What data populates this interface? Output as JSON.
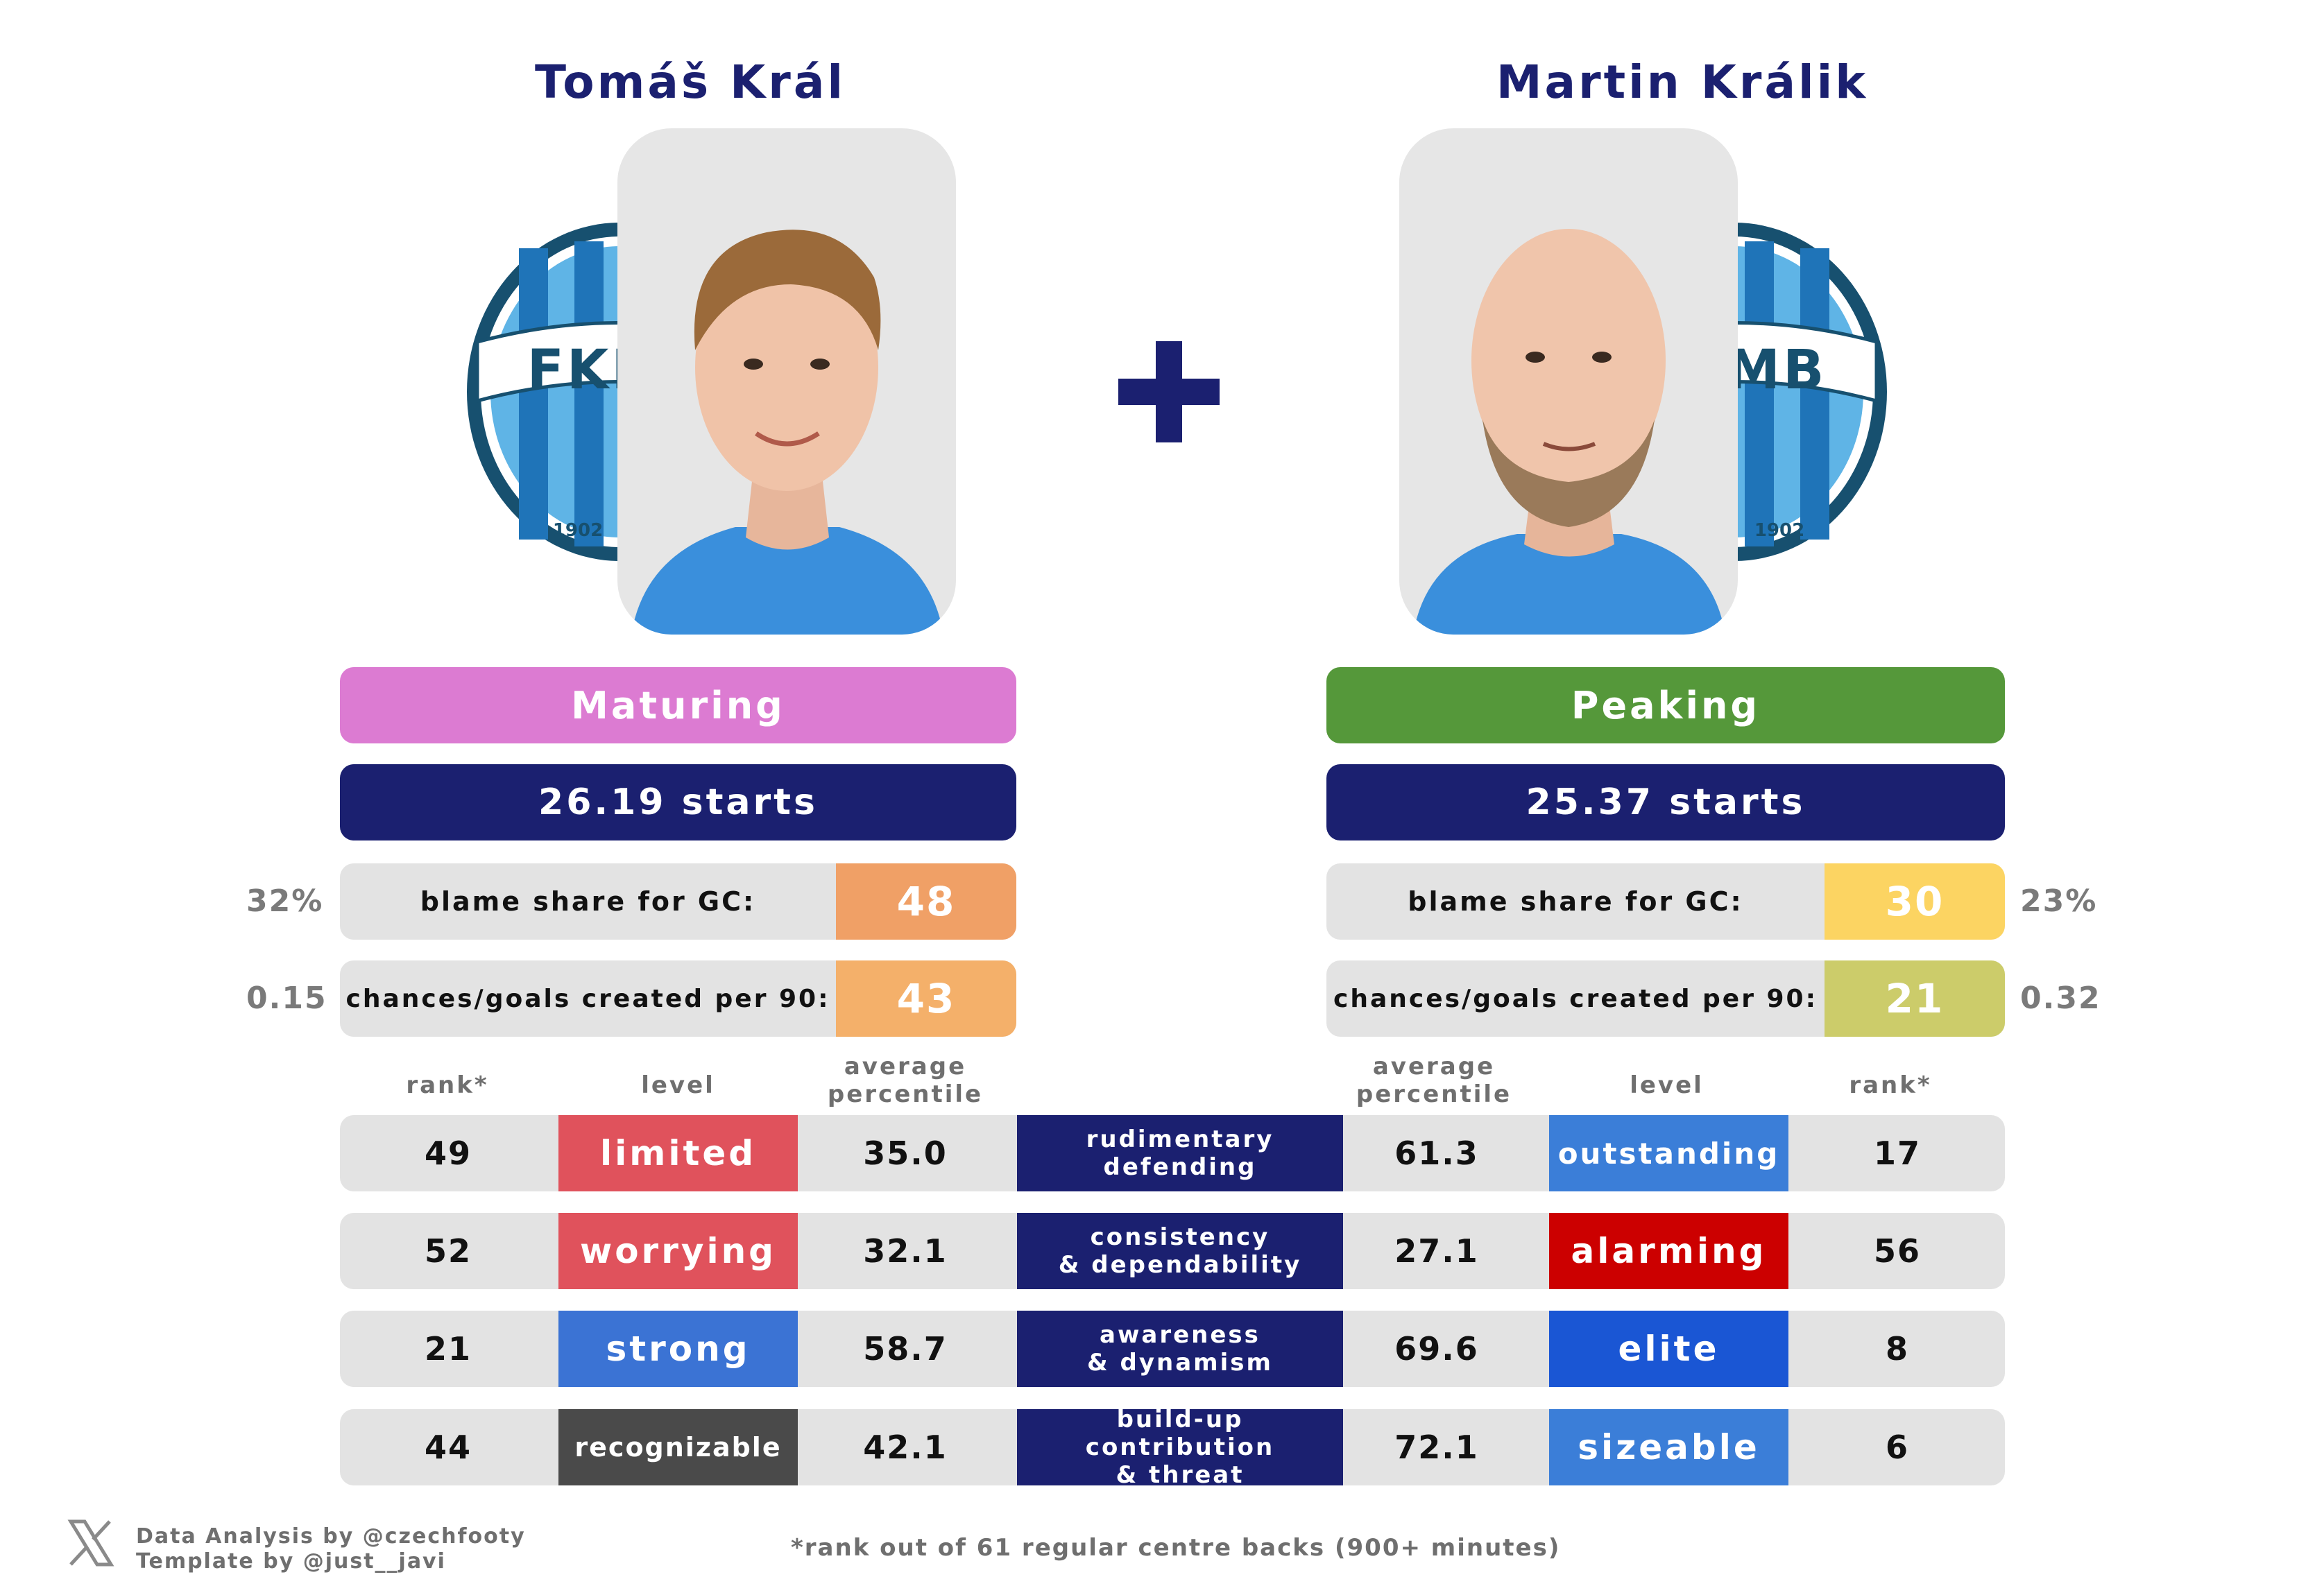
{
  "players": [
    {
      "name": "Tomáš Král",
      "crest_text": "FKMB",
      "crest_year": "1902",
      "stage": "Maturing",
      "stage_color": "#dc7bd2",
      "starts": "26.19 starts",
      "blame": {
        "label": "blame share for GC:",
        "value": "48",
        "color": "#f0a066",
        "side": "32%"
      },
      "chances": {
        "label": "chances/goals created per 90:",
        "value": "43",
        "color": "#f4b06a",
        "side": "0.15"
      },
      "headers": {
        "rank": "rank*",
        "level": "level",
        "avg": "average\npercentile"
      },
      "metrics": [
        {
          "rank": "49",
          "level": "limited",
          "level_color": "#e0525c",
          "avg": "35.0"
        },
        {
          "rank": "52",
          "level": "worrying",
          "level_color": "#e0525c",
          "avg": "32.1"
        },
        {
          "rank": "21",
          "level": "strong",
          "level_color": "#3b73d4",
          "avg": "58.7"
        },
        {
          "rank": "44",
          "level": "recognizable",
          "level_color": "#4a4a4a",
          "avg": "42.1"
        }
      ]
    },
    {
      "name": "Martin Králik",
      "crest_text": "FKMB",
      "crest_year": "1902",
      "stage": "Peaking",
      "stage_color": "#55983a",
      "starts": "25.37 starts",
      "blame": {
        "label": "blame share for GC:",
        "value": "30",
        "color": "#fcd462",
        "side": "23%"
      },
      "chances": {
        "label": "chances/goals created per 90:",
        "value": "21",
        "color": "#cccc6a",
        "side": "0.32"
      },
      "headers": {
        "rank": "rank*",
        "level": "level",
        "avg": "average\npercentile"
      },
      "metrics": [
        {
          "rank": "17",
          "level": "outstanding",
          "level_color": "#3b7ed8",
          "avg": "61.3"
        },
        {
          "rank": "56",
          "level": "alarming",
          "level_color": "#cc0000",
          "avg": "27.1"
        },
        {
          "rank": "8",
          "level": "elite",
          "level_color": "#1a56d4",
          "avg": "69.6"
        },
        {
          "rank": "6",
          "level": "sizeable",
          "level_color": "#3b7ed8",
          "avg": "72.1"
        }
      ]
    }
  ],
  "categories": [
    "rudimentary\ndefending",
    "consistency\n& dependability",
    "awareness\n& dynamism",
    "build-up contribution\n& threat"
  ],
  "colors": {
    "navy": "#1b2070",
    "row_grey": "#e3e3e3"
  },
  "footer": {
    "icon": "x-logo-icon",
    "credit_line1": "Data Analysis by @czechfooty",
    "credit_line2": "Template by @just__javi",
    "footnote": "*rank out of 61 regular centre backs (900+ minutes)"
  }
}
